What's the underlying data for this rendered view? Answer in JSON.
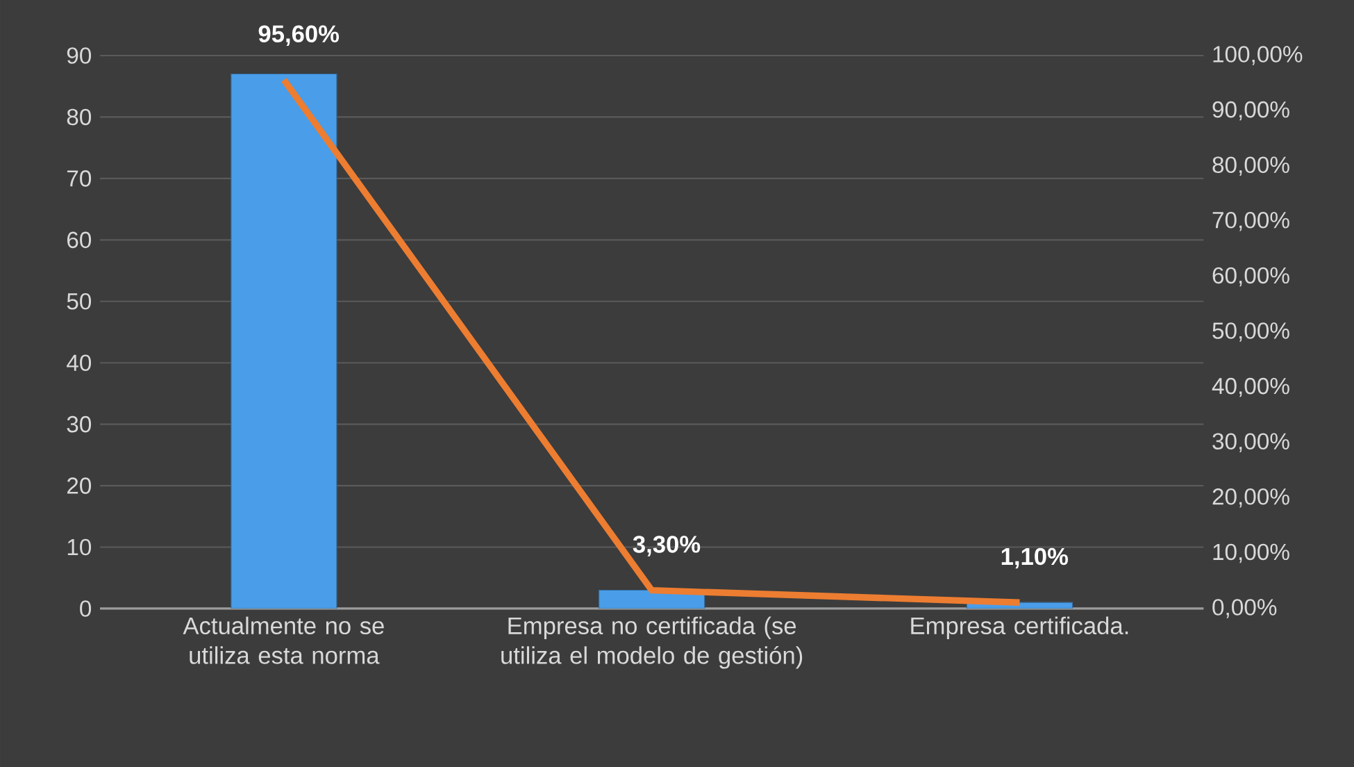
{
  "chart_data": {
    "type": "bar",
    "categories": [
      "Actualmente no se utiliza esta norma",
      "Empresa no certificada (se utiliza el modelo de gestión)",
      "Empresa certificada."
    ],
    "series": [
      {
        "color": "#4a9de8",
        "values": [
          87,
          3,
          1
        ]
      },
      {
        "type": "line",
        "axis": "y2",
        "color": "#ed7d31",
        "values": [
          95.6,
          3.3,
          1.1
        ],
        "value_labels": [
          "95,60%",
          "3,30%",
          "1,10%"
        ]
      }
    ],
    "ylim": [
      0,
      90
    ],
    "yticks": [
      0,
      10,
      20,
      30,
      40,
      50,
      60,
      70,
      80,
      90
    ],
    "y2lim": [
      0,
      100
    ],
    "y2ticks": [
      {
        "value": 0,
        "label": "0,00%"
      },
      {
        "value": 10,
        "label": "10,00%"
      },
      {
        "value": 20,
        "label": "20,00%"
      },
      {
        "value": 30,
        "label": "30,00%"
      },
      {
        "value": 40,
        "label": "40,00%"
      },
      {
        "value": 50,
        "label": "50,00%"
      },
      {
        "value": 60,
        "label": "60,00%"
      },
      {
        "value": 70,
        "label": "70,00%"
      },
      {
        "value": 80,
        "label": "80,00%"
      },
      {
        "value": 90,
        "label": "90,00%"
      },
      {
        "value": 100,
        "label": "100,00%"
      }
    ],
    "grid": "y",
    "legend": false,
    "marker": "none",
    "line_style": "solid"
  }
}
